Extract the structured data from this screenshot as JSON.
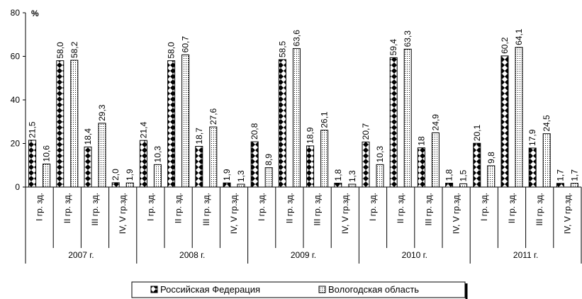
{
  "chart_data": {
    "type": "bar",
    "ylabel": "%",
    "ylim": [
      0,
      80
    ],
    "yticks": [
      "0",
      "20",
      "40",
      "60",
      "80"
    ],
    "year_groups": [
      "2007 г.",
      "2008 г.",
      "2009 г.",
      "2010 г.",
      "2011 г."
    ],
    "categories": [
      "I гр. зд.",
      "II гр. зд.",
      "III гр. зд.",
      "IV, V гр.зд."
    ],
    "series": [
      {
        "name": "Российская Федерация",
        "pattern": "diamond",
        "values": [
          [
            21.5,
            58.0,
            18.4,
            2.0
          ],
          [
            21.4,
            58.0,
            18.7,
            1.9
          ],
          [
            20.8,
            58.5,
            18.9,
            1.8
          ],
          [
            20.7,
            59.4,
            18,
            1.8
          ],
          [
            20.1,
            60.2,
            17.9,
            1.7
          ]
        ],
        "labels": [
          [
            "21,5",
            "58,0",
            "18,4",
            "2,0"
          ],
          [
            "21,4",
            "58,0",
            "18,7",
            "1,9"
          ],
          [
            "20,8",
            "58,5",
            "18,9",
            "1,8"
          ],
          [
            "20,7",
            "59,4",
            "18",
            "1,8"
          ],
          [
            "20,1",
            "60,2",
            "17,9",
            "1,7"
          ]
        ]
      },
      {
        "name": "Вологодская область",
        "pattern": "dots",
        "values": [
          [
            10.6,
            58.2,
            29.3,
            1.9
          ],
          [
            10.3,
            60.7,
            27.6,
            1.3
          ],
          [
            8.9,
            63.6,
            26.1,
            1.3
          ],
          [
            10.3,
            63.3,
            24.9,
            1.5
          ],
          [
            9.8,
            64.1,
            24.5,
            1.7
          ]
        ],
        "labels": [
          [
            "10,6",
            "58,2",
            "29,3",
            "1,9"
          ],
          [
            "10,3",
            "60,7",
            "27,6",
            "1,3"
          ],
          [
            "8,9",
            "63,6",
            "26,1",
            "1,3"
          ],
          [
            "10,3",
            "63,3",
            "24,9",
            "1,5"
          ],
          [
            "9,8",
            "64,1",
            "24,5",
            "1,7"
          ]
        ]
      }
    ],
    "legend_position": "bottom-center",
    "grid": false
  }
}
